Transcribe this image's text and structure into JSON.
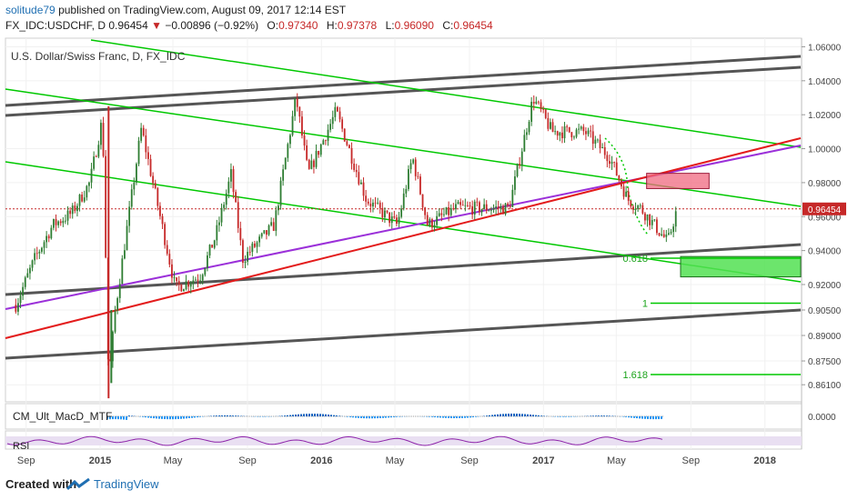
{
  "header": {
    "user": "solitude79",
    "published": "published on TradingView.com, August 09, 2017 12:14 EST",
    "symbol": "FX_IDC:USDCHF, D",
    "last": "0.96454",
    "arrow": "▼",
    "change": "−0.00896 (−0.92%)",
    "o_label": "O:",
    "o_value": "0.97340",
    "h_label": "H:",
    "h_value": "0.97378",
    "l_label": "L:",
    "l_value": "0.96090",
    "c_label": "C:",
    "c_value": "0.96454"
  },
  "footer": {
    "created": "Created with",
    "brand": "TradingView",
    "logo_icon": "tradingview-logo-icon"
  },
  "colors": {
    "up": "#2e7d32",
    "down": "#c62828",
    "green_channel": "#00c800",
    "gray_channel": "#555555",
    "red_trend": "#e31b1b",
    "purple_trend": "#9b30d9",
    "pink_zone": "#f06a80",
    "green_zone": "#52e052",
    "macd": "#1565c0",
    "rsi": "#8e24aa"
  },
  "chart_data": {
    "type": "candlestick",
    "title": "U.S. Dollar/Swiss Franc, D, FX_IDC",
    "price_axis": [
      "1.06000",
      "1.04000",
      "1.02000",
      "1.00000",
      "0.98000",
      "0.96000",
      "0.94000",
      "0.92000",
      "0.90500",
      "0.89000",
      "0.87500",
      "0.86100"
    ],
    "price_range": [
      0.852,
      1.064
    ],
    "last_price_label": "0.96454",
    "time_axis": [
      "Sep",
      "2015",
      "May",
      "Sep",
      "2016",
      "May",
      "Sep",
      "2017",
      "May",
      "Sep",
      "2018"
    ],
    "price_path": [
      {
        "date": "2014-08-15",
        "close": 0.908
      },
      {
        "date": "2014-09-15",
        "close": 0.935
      },
      {
        "date": "2014-10-15",
        "close": 0.955
      },
      {
        "date": "2014-11-15",
        "close": 0.962
      },
      {
        "date": "2014-12-15",
        "close": 0.98
      },
      {
        "date": "2015-01-05",
        "close": 1.018
      },
      {
        "date": "2015-01-15",
        "close": 0.862
      },
      {
        "date": "2015-01-26",
        "close": 0.905
      },
      {
        "date": "2015-03-10",
        "close": 1.012
      },
      {
        "date": "2015-05-05",
        "close": 0.918
      },
      {
        "date": "2015-06-15",
        "close": 0.925
      },
      {
        "date": "2015-07-10",
        "close": 0.948
      },
      {
        "date": "2015-08-05",
        "close": 0.985
      },
      {
        "date": "2015-08-24",
        "close": 0.935
      },
      {
        "date": "2015-10-15",
        "close": 0.955
      },
      {
        "date": "2015-11-20",
        "close": 1.03
      },
      {
        "date": "2015-12-10",
        "close": 0.985
      },
      {
        "date": "2016-01-25",
        "close": 1.022
      },
      {
        "date": "2016-03-15",
        "close": 0.97
      },
      {
        "date": "2016-05-05",
        "close": 0.955
      },
      {
        "date": "2016-05-30",
        "close": 0.995
      },
      {
        "date": "2016-06-24",
        "close": 0.955
      },
      {
        "date": "2016-08-10",
        "close": 0.965
      },
      {
        "date": "2016-11-05",
        "close": 0.965
      },
      {
        "date": "2016-12-15",
        "close": 1.03
      },
      {
        "date": "2017-01-15",
        "close": 1.01
      },
      {
        "date": "2017-03-10",
        "close": 1.01
      },
      {
        "date": "2017-04-20",
        "close": 0.995
      },
      {
        "date": "2017-05-20",
        "close": 0.97
      },
      {
        "date": "2017-06-10",
        "close": 0.965
      },
      {
        "date": "2017-07-25",
        "close": 0.945
      },
      {
        "date": "2017-08-09",
        "close": 0.9645
      }
    ],
    "fib_levels": [
      {
        "label": "0.618",
        "price": 0.9355
      },
      {
        "label": "1",
        "price": 0.909
      },
      {
        "label": "1.618",
        "price": 0.867
      }
    ],
    "indicators": [
      {
        "name": "CM_Ult_MacD_MTF",
        "axis_label": "0.0000"
      },
      {
        "name": "RSI"
      }
    ]
  }
}
